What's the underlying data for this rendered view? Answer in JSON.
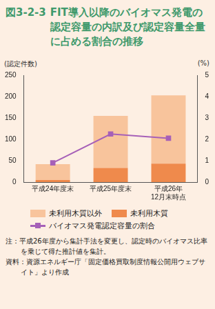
{
  "chart_data": {
    "type": "bar",
    "figure_number": "図3-2-3",
    "title": "FIT導入以降のバイオマス発電の認定容量の内訳及び認定容量全量に占める割合の推移",
    "ylabel": "(認定件数)",
    "y2label": "(%)",
    "categories": [
      "平成24年度末",
      "平成25年度末",
      "平成26年12月末時点"
    ],
    "series": [
      {
        "name": "未利用木質以外",
        "type": "bar",
        "color": "#f8c49c",
        "values": [
          37,
          122,
          160
        ]
      },
      {
        "name": "未利用木質",
        "type": "bar",
        "color": "#ef8a4c",
        "values": [
          5,
          33,
          43
        ]
      },
      {
        "name": "バイオマス発電認定容量の割合",
        "type": "line",
        "axis": "y2",
        "color": "#a660b8",
        "marker": "square",
        "values": [
          0.9,
          2.25,
          2.05
        ]
      }
    ],
    "ylim": [
      0,
      250
    ],
    "yticks": [
      0,
      50,
      100,
      150,
      200,
      250
    ],
    "y2lim": [
      0,
      5
    ],
    "y2ticks": [
      0,
      1,
      2,
      3,
      4,
      5
    ],
    "stacked": true,
    "grid": false,
    "legend": "bottom",
    "notes": [
      "注：平成26年度から集計手法を変更し、認定時のバイオマス比率を乗じて得た推計値を集計。",
      "資料：資源エネルギー庁「固定価格買取制度情報公開用ウェブサイト」より作成"
    ]
  }
}
